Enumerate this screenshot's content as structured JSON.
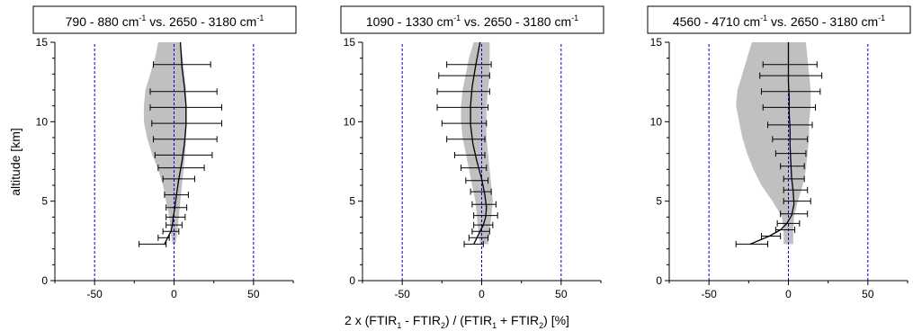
{
  "figure": {
    "ylabel": "altitude [km]",
    "xlabel_parts": [
      "2 x (FTIR",
      "1",
      " - FTIR",
      "2",
      ") / (FTIR",
      "1",
      " + FTIR",
      "2",
      ") [%]"
    ]
  },
  "colors": {
    "band": "#c0c0c0",
    "line": "#000000",
    "ref": "#0000cc",
    "axis": "#000000"
  },
  "chart_data": [
    {
      "type": "line",
      "title_parts": [
        "790 - 880 cm",
        "-1",
        " vs. 2650 - 3180 cm",
        "-1"
      ],
      "xlim": [
        -75,
        75
      ],
      "ylim": [
        0,
        15
      ],
      "xticks": [
        -50,
        0,
        50
      ],
      "yticks": [
        0,
        5,
        10,
        15
      ],
      "reference_lines_x": [
        -50,
        0,
        50
      ],
      "mean_curve": {
        "alt": [
          2.3,
          2.7,
          3.1,
          3.5,
          4.0,
          4.6,
          5.4,
          6.4,
          7.5,
          8.6,
          9.8,
          11.0,
          12.2,
          13.4,
          15.0
        ],
        "x": [
          -6,
          -4,
          -2,
          -1,
          -0.5,
          0.5,
          1.5,
          3,
          5,
          6.5,
          7.5,
          7.5,
          6.5,
          5,
          4
        ]
      },
      "shaded_band": {
        "alt": [
          2.3,
          3,
          4,
          5,
          6,
          7,
          8,
          9,
          10,
          11,
          12,
          13,
          14,
          15
        ],
        "left": [
          -1,
          -2,
          -3,
          -5,
          -7,
          -10,
          -14,
          -17,
          -19,
          -19,
          -18,
          -15,
          -12,
          -10
        ],
        "right": [
          1,
          2,
          3,
          4,
          5,
          6,
          7,
          7.5,
          8,
          8,
          7.5,
          6.5,
          5.5,
          4
        ]
      },
      "error_bars": [
        {
          "alt": 2.3,
          "mean": -6,
          "min": -22,
          "max": -5
        },
        {
          "alt": 2.7,
          "mean": -4,
          "min": -10,
          "max": -3
        },
        {
          "alt": 3.1,
          "mean": -2,
          "min": -7,
          "max": 3
        },
        {
          "alt": 3.5,
          "mean": -1,
          "min": -5,
          "max": 5
        },
        {
          "alt": 4.0,
          "mean": -0.5,
          "min": -5,
          "max": 7
        },
        {
          "alt": 4.6,
          "mean": 0.5,
          "min": -5,
          "max": 8
        },
        {
          "alt": 5.4,
          "mean": 1.5,
          "min": -6,
          "max": 9
        },
        {
          "alt": 6.4,
          "mean": 3,
          "min": -7,
          "max": 13
        },
        {
          "alt": 7.1,
          "mean": 4.5,
          "min": -10,
          "max": 19
        },
        {
          "alt": 7.9,
          "mean": 6,
          "min": -12,
          "max": 24
        },
        {
          "alt": 8.9,
          "mean": 7,
          "min": -13,
          "max": 27
        },
        {
          "alt": 9.9,
          "mean": 7.5,
          "min": -14,
          "max": 30
        },
        {
          "alt": 10.9,
          "mean": 7.5,
          "min": -15,
          "max": 30
        },
        {
          "alt": 11.9,
          "mean": 6.5,
          "min": -15,
          "max": 27
        },
        {
          "alt": 13.6,
          "mean": 5,
          "min": -13,
          "max": 23
        }
      ]
    },
    {
      "type": "line",
      "title_parts": [
        "1090 - 1330 cm",
        "-1",
        " vs. 2650 - 3180 cm",
        "-1"
      ],
      "xlim": [
        -75,
        75
      ],
      "ylim": [
        0,
        15
      ],
      "xticks": [
        -50,
        0,
        50
      ],
      "yticks": [
        0,
        5,
        10,
        15
      ],
      "reference_lines_x": [
        -50,
        0,
        50
      ],
      "mean_curve": {
        "alt": [
          2.3,
          2.7,
          3.1,
          3.5,
          4.0,
          4.6,
          5.4,
          6.4,
          7.5,
          8.6,
          9.8,
          11.0,
          12.2,
          13.4,
          14.5,
          15.0
        ],
        "x": [
          -5,
          -3,
          -1,
          1,
          2.5,
          3,
          2,
          0,
          -3,
          -5.5,
          -7,
          -7,
          -6,
          -4,
          -2,
          -1
        ]
      },
      "shaded_band": {
        "alt": [
          2.3,
          3,
          4,
          5,
          6,
          7,
          8,
          9,
          10,
          11,
          12,
          13,
          14,
          15
        ],
        "left": [
          -1,
          -2,
          -3,
          -4,
          -6,
          -8,
          -10,
          -12,
          -13,
          -13,
          -12,
          -10,
          -8,
          -5
        ],
        "right": [
          4,
          5,
          6,
          7,
          6,
          5,
          4,
          3,
          3,
          3,
          4,
          5,
          5,
          5
        ]
      },
      "error_bars": [
        {
          "alt": 2.3,
          "mean": -5,
          "min": -11,
          "max": 1
        },
        {
          "alt": 2.7,
          "mean": -3,
          "min": -8,
          "max": 4
        },
        {
          "alt": 3.1,
          "mean": -1,
          "min": -6,
          "max": 5
        },
        {
          "alt": 3.5,
          "mean": 1,
          "min": -5,
          "max": 7
        },
        {
          "alt": 4.1,
          "mean": 2.5,
          "min": -5,
          "max": 10
        },
        {
          "alt": 4.8,
          "mean": 3,
          "min": -6,
          "max": 9
        },
        {
          "alt": 5.6,
          "mean": 2,
          "min": -7,
          "max": 6
        },
        {
          "alt": 6.3,
          "mean": 1,
          "min": -10,
          "max": 4
        },
        {
          "alt": 7.1,
          "mean": -1,
          "min": -13,
          "max": 3
        },
        {
          "alt": 7.9,
          "mean": -3,
          "min": -17,
          "max": 2
        },
        {
          "alt": 8.9,
          "mean": -5,
          "min": -22,
          "max": 2
        },
        {
          "alt": 9.9,
          "mean": -6.5,
          "min": -25,
          "max": 3
        },
        {
          "alt": 10.9,
          "mean": -7,
          "min": -28,
          "max": 4
        },
        {
          "alt": 11.9,
          "mean": -7,
          "min": -28,
          "max": 5
        },
        {
          "alt": 12.9,
          "mean": -6,
          "min": -27,
          "max": 5
        },
        {
          "alt": 13.6,
          "mean": -4,
          "min": -22,
          "max": 6
        }
      ]
    },
    {
      "type": "line",
      "title_parts": [
        "4560 - 4710 cm",
        "-1",
        " vs. 2650 - 3180 cm",
        "-1"
      ],
      "xlim": [
        -75,
        75
      ],
      "ylim": [
        0,
        15
      ],
      "xticks": [
        -50,
        0,
        50
      ],
      "yticks": [
        0,
        5,
        10,
        15
      ],
      "reference_lines_x": [
        -50,
        0,
        50
      ],
      "mean_curve": {
        "alt": [
          2.3,
          2.8,
          3.2,
          3.6,
          4.1,
          4.8,
          5.6,
          6.5,
          7.5,
          8.5,
          9.5,
          10.5,
          11.5,
          12.5,
          13.5,
          15.0
        ],
        "x": [
          -24,
          -12,
          -5,
          -1,
          2,
          3.5,
          3,
          2,
          1.5,
          1,
          1,
          0.5,
          0.5,
          0,
          0,
          0
        ]
      },
      "shaded_band": {
        "alt": [
          2.3,
          3,
          4,
          5,
          6,
          7,
          8,
          9,
          10,
          11,
          12,
          13,
          14,
          15
        ],
        "left": [
          -3,
          -3,
          -4,
          -10,
          -17,
          -22,
          -26,
          -29,
          -31,
          -33,
          -32,
          -29,
          -26,
          -23
        ],
        "right": [
          3,
          3,
          3.5,
          6,
          9,
          11,
          12,
          13,
          13,
          14,
          14,
          13,
          12,
          11
        ]
      },
      "error_bars": [
        {
          "alt": 2.3,
          "mean": -24,
          "min": -33,
          "max": -13
        },
        {
          "alt": 2.8,
          "mean": -12,
          "min": -17,
          "max": -5
        },
        {
          "alt": 3.2,
          "mean": -5,
          "min": -8,
          "max": 4
        },
        {
          "alt": 3.6,
          "mean": -1,
          "min": -7,
          "max": 7
        },
        {
          "alt": 4.2,
          "mean": 2,
          "min": -5,
          "max": 12
        },
        {
          "alt": 5.0,
          "mean": 3.5,
          "min": -3,
          "max": 14
        },
        {
          "alt": 5.7,
          "mean": 3,
          "min": -3,
          "max": 12
        },
        {
          "alt": 6.4,
          "mean": 2,
          "min": -3,
          "max": 10
        },
        {
          "alt": 7.2,
          "mean": 1.5,
          "min": -5,
          "max": 10
        },
        {
          "alt": 8.0,
          "mean": 1,
          "min": -8,
          "max": 11
        },
        {
          "alt": 8.9,
          "mean": 1,
          "min": -10,
          "max": 12
        },
        {
          "alt": 9.8,
          "mean": 0.5,
          "min": -13,
          "max": 15
        },
        {
          "alt": 10.9,
          "mean": 0.5,
          "min": -16,
          "max": 17
        },
        {
          "alt": 11.9,
          "mean": 0,
          "min": -17,
          "max": 20
        },
        {
          "alt": 12.9,
          "mean": 0,
          "min": -18,
          "max": 21
        },
        {
          "alt": 13.6,
          "mean": 0,
          "min": -16,
          "max": 18
        }
      ]
    }
  ]
}
